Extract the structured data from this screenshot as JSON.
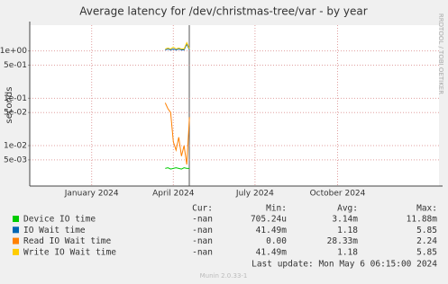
{
  "chart_data": {
    "type": "line",
    "title": "Average latency for /dev/christmas-tree/var - by year",
    "ylabel": "seconds",
    "side_label": "RRDTOOL / TOBI OETIKER",
    "log_scale": true,
    "grid": true,
    "ylim": [
      0.0014,
      3.5
    ],
    "yticks": [
      {
        "value": 1,
        "label": "1e+00"
      },
      {
        "value": 0.5,
        "label": "5e-01"
      },
      {
        "value": 0.1,
        "label": "1e-01"
      },
      {
        "value": 0.05,
        "label": "5e-02"
      },
      {
        "value": 0.01,
        "label": "1e-02"
      },
      {
        "value": 0.005,
        "label": "5e-03"
      }
    ],
    "xlim": [
      "2023-10-24",
      "2025-01-22"
    ],
    "xticks": [
      {
        "value": "2024-01",
        "label": "January 2024"
      },
      {
        "value": "2024-04",
        "label": "April 2024"
      },
      {
        "value": "2024-07",
        "label": "July 2024"
      },
      {
        "value": "2024-10",
        "label": "October 2024"
      }
    ],
    "x": [
      "2024-03-23",
      "2024-03-26",
      "2024-03-29",
      "2024-04-01",
      "2024-04-04",
      "2024-04-07",
      "2024-04-10",
      "2024-04-13",
      "2024-04-16",
      "2024-04-19"
    ],
    "stats_columns": [
      "Cur:",
      "Min:",
      "Avg:",
      "Max:"
    ],
    "series": [
      {
        "name": "Device IO time",
        "color": "#00cc00",
        "values": [
          0.0033,
          0.0034,
          0.0032,
          0.0033,
          0.0034,
          0.0033,
          0.0032,
          0.0034,
          0.0033,
          0.0033
        ],
        "stats": [
          "-nan",
          "705.24u",
          "3.14m",
          "11.88m"
        ]
      },
      {
        "name": "IO Wait time",
        "color": "#0066b3",
        "values": [
          1.05,
          1.1,
          1.05,
          1.1,
          1.05,
          1.1,
          1.05,
          1.05,
          1.4,
          1.05
        ],
        "stats": [
          "-nan",
          "41.49m",
          "1.18",
          "5.85"
        ]
      },
      {
        "name": "Read IO Wait time",
        "color": "#ff8000",
        "values": [
          0.08,
          0.06,
          0.05,
          0.012,
          0.008,
          0.015,
          0.006,
          0.01,
          0.004,
          0.04
        ],
        "stats": [
          "-nan",
          "0.00",
          "28.33m",
          "2.24"
        ]
      },
      {
        "name": "Write IO Wait time",
        "color": "#ffcc00",
        "values": [
          1.1,
          1.15,
          1.1,
          1.2,
          1.1,
          1.15,
          1.1,
          1.1,
          1.5,
          1.1
        ],
        "stats": [
          "-nan",
          "41.49m",
          "1.18",
          "5.85"
        ]
      }
    ],
    "last_update": "Last update:  Mon May  6 06:15:00 2024",
    "footer": "Munin 2.0.33-1"
  }
}
